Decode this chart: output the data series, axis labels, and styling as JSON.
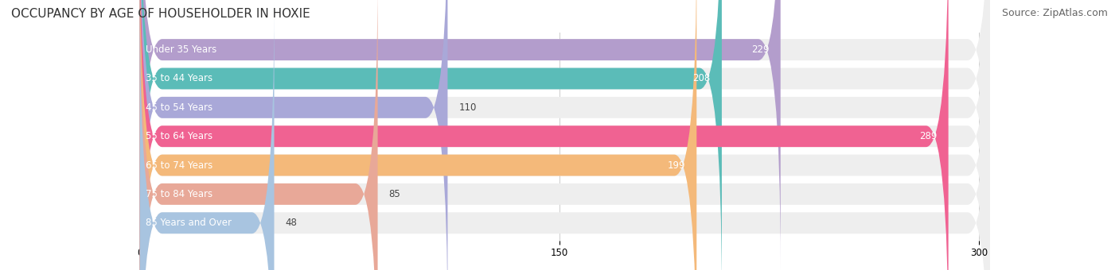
{
  "title": "OCCUPANCY BY AGE OF HOUSEHOLDER IN HOXIE",
  "source": "Source: ZipAtlas.com",
  "categories": [
    "Under 35 Years",
    "35 to 44 Years",
    "45 to 54 Years",
    "55 to 64 Years",
    "65 to 74 Years",
    "75 to 84 Years",
    "85 Years and Over"
  ],
  "values": [
    229,
    208,
    110,
    289,
    199,
    85,
    48
  ],
  "bar_colors": [
    "#b39dcc",
    "#5bbcb8",
    "#a9a8d8",
    "#f06292",
    "#f4b97a",
    "#e8a898",
    "#a8c4e0"
  ],
  "bar_bg_color": "#eeeeee",
  "xlim": [
    0,
    310
  ],
  "xticks": [
    0,
    150,
    300
  ],
  "figsize": [
    14.06,
    3.4
  ],
  "dpi": 100,
  "title_fontsize": 11,
  "label_fontsize": 8.5,
  "value_fontsize": 8.5,
  "source_fontsize": 9,
  "background_color": "#ffffff"
}
